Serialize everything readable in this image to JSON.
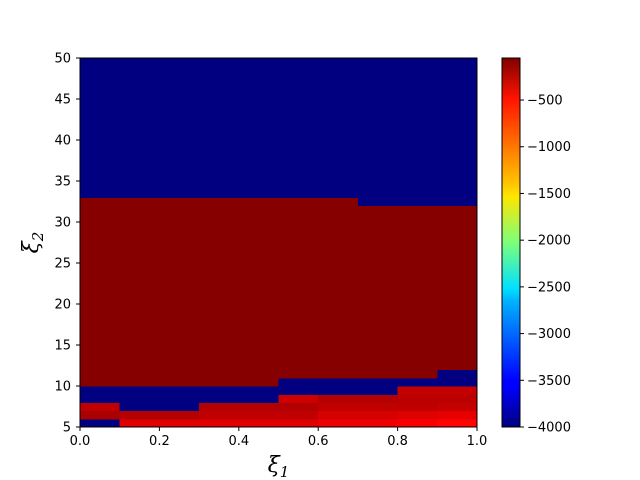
{
  "chart_data": {
    "type": "heatmap",
    "title": "",
    "xlabel": "ξ",
    "xlabel_sub": "1",
    "ylabel": "ξ",
    "ylabel_sub": "2",
    "xlim": [
      0,
      1
    ],
    "ylim": [
      5,
      50
    ],
    "x_ticks": [
      0.0,
      0.2,
      0.4,
      0.6,
      0.8,
      1.0
    ],
    "x_tick_labels": [
      "0.0",
      "0.2",
      "0.4",
      "0.6",
      "0.8",
      "1.0"
    ],
    "y_ticks": [
      5,
      10,
      15,
      20,
      25,
      30,
      35,
      40,
      45,
      50
    ],
    "y_tick_labels": [
      "5",
      "10",
      "15",
      "20",
      "25",
      "30",
      "35",
      "40",
      "45",
      "50"
    ],
    "grid": false,
    "colormap": "jet",
    "colorbar": {
      "range": [
        -4000,
        -50
      ],
      "ticks": [
        -4000,
        -3500,
        -3000,
        -2500,
        -2000,
        -1500,
        -1000,
        -500
      ],
      "tick_labels": [
        "−4000",
        "−3500",
        "−3000",
        "−2500",
        "−2000",
        "−1500",
        "−1000",
        "−500"
      ]
    },
    "x_columns": [
      0.0,
      0.1,
      0.2,
      0.3,
      0.4,
      0.5,
      0.6,
      0.7,
      0.8,
      0.9
    ],
    "column_width": 0.1,
    "regions": [
      {
        "x": [
          0.0,
          0.1
        ],
        "bands": [
          [
            5,
            6,
            -4000
          ],
          [
            6,
            7,
            -220
          ],
          [
            7,
            8,
            -300
          ],
          [
            8,
            9,
            -4000
          ],
          [
            9,
            10,
            -4000
          ],
          [
            10,
            33,
            -80
          ],
          [
            33,
            50,
            -4000
          ]
        ]
      },
      {
        "x": [
          0.1,
          0.2
        ],
        "bands": [
          [
            5,
            6,
            -420
          ],
          [
            6,
            7,
            -250
          ],
          [
            7,
            8,
            -4000
          ],
          [
            8,
            9,
            -4000
          ],
          [
            9,
            10,
            -4000
          ],
          [
            10,
            33,
            -80
          ],
          [
            33,
            50,
            -4000
          ]
        ]
      },
      {
        "x": [
          0.2,
          0.3
        ],
        "bands": [
          [
            5,
            6,
            -420
          ],
          [
            6,
            7,
            -250
          ],
          [
            7,
            8,
            -4000
          ],
          [
            8,
            9,
            -4000
          ],
          [
            9,
            10,
            -4000
          ],
          [
            10,
            33,
            -80
          ],
          [
            33,
            50,
            -4000
          ]
        ]
      },
      {
        "x": [
          0.3,
          0.4
        ],
        "bands": [
          [
            5,
            6,
            -420
          ],
          [
            6,
            7,
            -300
          ],
          [
            7,
            8,
            -250
          ],
          [
            8,
            9,
            -4000
          ],
          [
            9,
            10,
            -4000
          ],
          [
            10,
            33,
            -80
          ],
          [
            33,
            50,
            -4000
          ]
        ]
      },
      {
        "x": [
          0.4,
          0.5
        ],
        "bands": [
          [
            5,
            6,
            -420
          ],
          [
            6,
            7,
            -300
          ],
          [
            7,
            8,
            -250
          ],
          [
            8,
            9,
            -4000
          ],
          [
            9,
            10,
            -4000
          ],
          [
            10,
            33,
            -80
          ],
          [
            33,
            50,
            -4000
          ]
        ]
      },
      {
        "x": [
          0.5,
          0.6
        ],
        "bands": [
          [
            5,
            6,
            -420
          ],
          [
            6,
            7,
            -300
          ],
          [
            7,
            8,
            -250
          ],
          [
            8,
            9,
            -350
          ],
          [
            9,
            11,
            -4000
          ],
          [
            11,
            33,
            -80
          ],
          [
            33,
            50,
            -4000
          ]
        ]
      },
      {
        "x": [
          0.6,
          0.7
        ],
        "bands": [
          [
            5,
            6,
            -480
          ],
          [
            6,
            7,
            -380
          ],
          [
            7,
            8,
            -300
          ],
          [
            8,
            9,
            -250
          ],
          [
            9,
            11,
            -4000
          ],
          [
            11,
            33,
            -80
          ],
          [
            33,
            50,
            -4000
          ]
        ]
      },
      {
        "x": [
          0.7,
          0.8
        ],
        "bands": [
          [
            5,
            6,
            -480
          ],
          [
            6,
            7,
            -380
          ],
          [
            7,
            8,
            -300
          ],
          [
            8,
            9,
            -250
          ],
          [
            9,
            11,
            -4000
          ],
          [
            11,
            32,
            -80
          ],
          [
            32,
            50,
            -4000
          ]
        ]
      },
      {
        "x": [
          0.8,
          0.9
        ],
        "bands": [
          [
            5,
            6,
            -520
          ],
          [
            6,
            7,
            -420
          ],
          [
            7,
            8,
            -300
          ],
          [
            8,
            9,
            -280
          ],
          [
            9,
            10,
            -320
          ],
          [
            10,
            11,
            -4000
          ],
          [
            11,
            32,
            -80
          ],
          [
            32,
            50,
            -4000
          ]
        ]
      },
      {
        "x": [
          0.9,
          1.0
        ],
        "bands": [
          [
            5,
            6,
            -560
          ],
          [
            6,
            7,
            -450
          ],
          [
            7,
            8,
            -320
          ],
          [
            8,
            9,
            -280
          ],
          [
            9,
            10,
            -320
          ],
          [
            10,
            12,
            -4000
          ],
          [
            12,
            32,
            -80
          ],
          [
            32,
            50,
            -4000
          ]
        ]
      }
    ]
  }
}
